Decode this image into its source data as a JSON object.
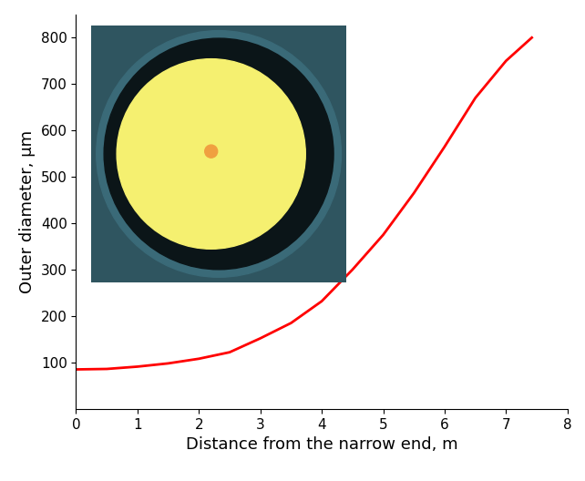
{
  "chart_data": {
    "type": "line",
    "x_label": "Distance from the narrow end, m",
    "y_label": "Outer diameter, µm",
    "x": [
      0,
      0.5,
      1,
      1.5,
      2,
      2.5,
      3,
      3.5,
      4,
      4.5,
      5,
      5.5,
      6,
      6.5,
      7,
      7.42
    ],
    "values": [
      85,
      86,
      91,
      98,
      108,
      122,
      152,
      185,
      232,
      300,
      375,
      465,
      565,
      670,
      750,
      800
    ],
    "color": "#ff0000",
    "xlim": [
      0,
      8
    ],
    "xticks": [
      0,
      1,
      2,
      3,
      4,
      5,
      6,
      7,
      8
    ],
    "ylim": [
      0,
      850
    ],
    "yticks": [
      100,
      200,
      300,
      400,
      500,
      600,
      700,
      800
    ],
    "grid": false
  }
}
